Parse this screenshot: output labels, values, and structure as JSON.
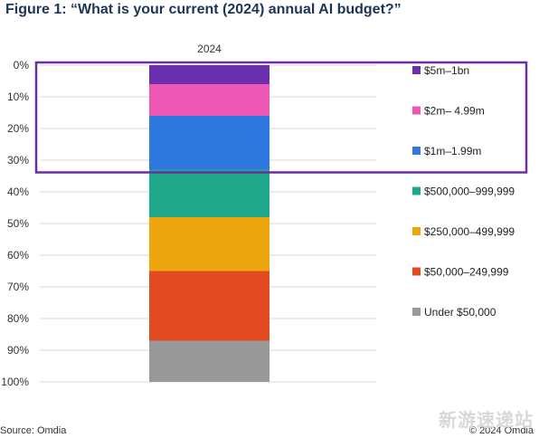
{
  "figure": {
    "title": "Figure 1: “What is your current (2024) annual AI budget?”",
    "source": "Source: Omdia",
    "copyright": "© 2024 Omdia",
    "watermark": "新游速递站"
  },
  "chart_data": {
    "type": "bar",
    "stacked": true,
    "orientation": "vertical",
    "categories": [
      "2024"
    ],
    "ylim": [
      0,
      100
    ],
    "y_inverted": true,
    "y_ticks": [
      "0%",
      "10%",
      "20%",
      "30%",
      "40%",
      "50%",
      "60%",
      "70%",
      "80%",
      "90%",
      "100%"
    ],
    "grid": true,
    "legend_position": "right",
    "series": [
      {
        "name": "$5m–1bn",
        "values": [
          6
        ],
        "color": "#6a2fad"
      },
      {
        "name": "$2m– 4.99m",
        "values": [
          10
        ],
        "color": "#ef57b4"
      },
      {
        "name": "$1m–1.99m",
        "values": [
          17
        ],
        "color": "#2f78e0"
      },
      {
        "name": "$500,000–999,999",
        "values": [
          15
        ],
        "color": "#1fa88a"
      },
      {
        "name": "$250,000–499,999",
        "values": [
          17
        ],
        "color": "#eea60e"
      },
      {
        "name": "$50,000–249,999",
        "values": [
          22
        ],
        "color": "#e24a22"
      },
      {
        "name": "Under $50,000",
        "values": [
          13
        ],
        "color": "#999999"
      }
    ],
    "highlight": {
      "series": [
        "$5m–1bn",
        "$2m– 4.99m",
        "$1m–1.99m"
      ],
      "color": "#6a2fa0"
    }
  }
}
